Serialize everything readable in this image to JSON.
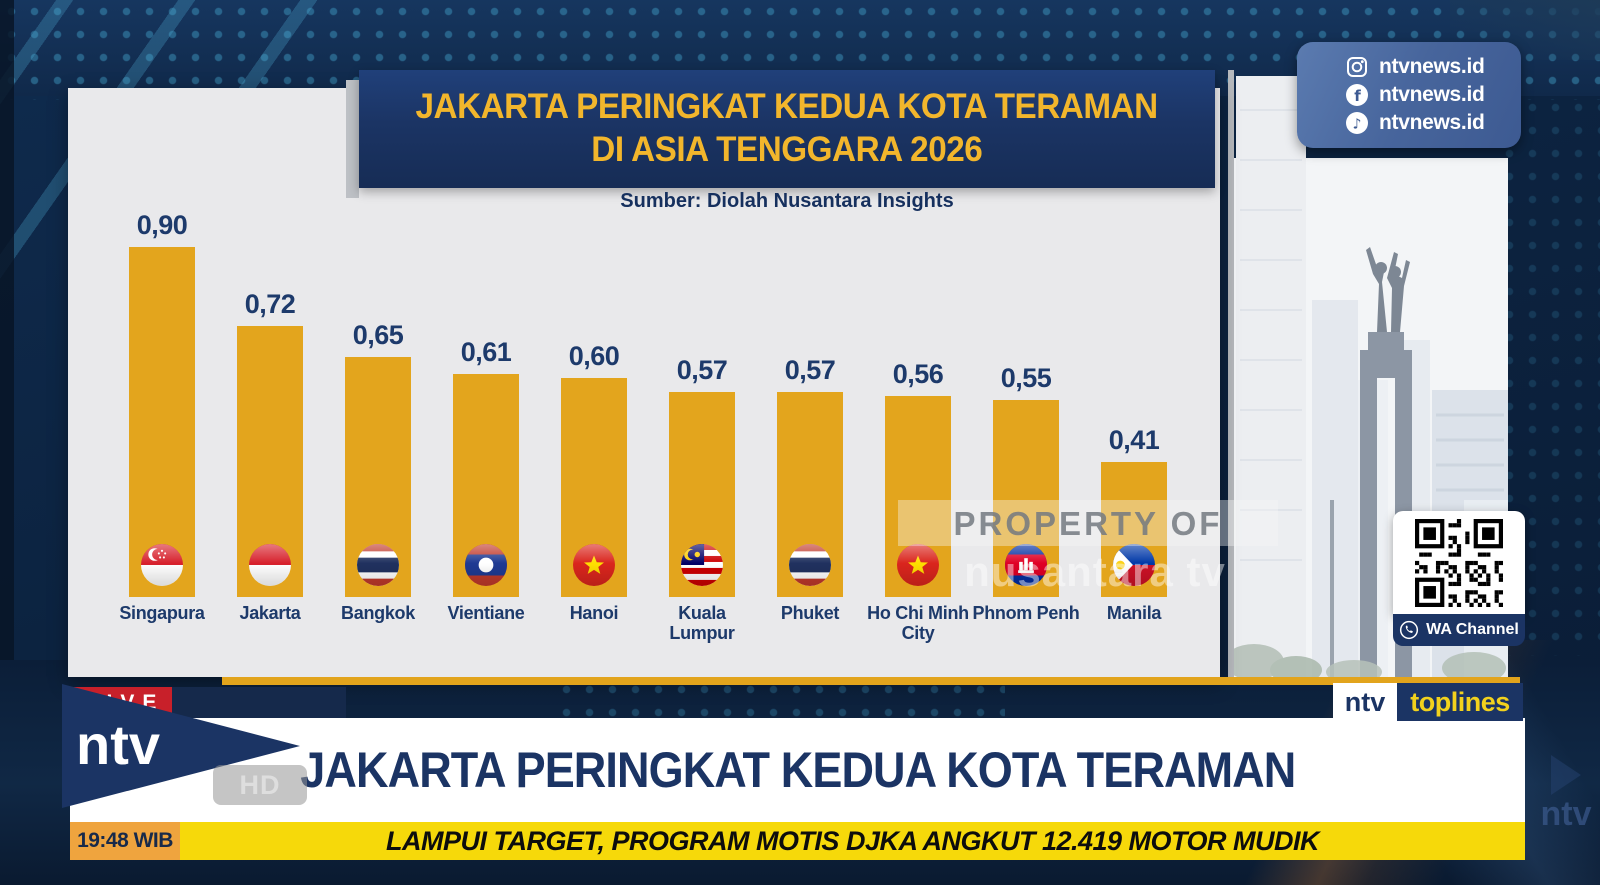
{
  "broadcast": {
    "live_label": "LIVE",
    "time": "19:48 WIB",
    "hd_label": "HD",
    "channel_logo_text": "ntv",
    "program_badge": {
      "prefix": "ntv",
      "name": "toplines"
    },
    "headline": "JAKARTA PERINGKAT KEDUA KOTA TERAMAN",
    "ticker": "LAMPUI TARGET, PROGRAM MOTIS DJKA ANGKUT 12.419 MOTOR MUDIK"
  },
  "social_panel": {
    "items": [
      {
        "platform": "instagram",
        "handle": "ntvnews.id"
      },
      {
        "platform": "facebook",
        "handle": "ntvnews.id"
      },
      {
        "platform": "tiktok",
        "handle": "ntvnews.id"
      }
    ]
  },
  "qr_panel": {
    "icon": "whatsapp",
    "label": "WA Channel"
  },
  "watermark": {
    "line1": "PROPERTY OF",
    "line2": "nusantara tv"
  },
  "background": {
    "ghost_logo": "ntv"
  },
  "chart_data": {
    "type": "bar",
    "title_lines": [
      "JAKARTA PERINGKAT KEDUA KOTA TERAMAN",
      "DI ASIA TENGGARA 2026"
    ],
    "source": "Sumber: Diolah Nusantara Insights",
    "categories": [
      "Singapura",
      "Jakarta",
      "Bangkok",
      "Vientiane",
      "Hanoi",
      "Kuala Lumpur",
      "Phuket",
      "Ho Chi Minh City",
      "Phnom Penh",
      "Manila"
    ],
    "values": [
      0.9,
      0.72,
      0.65,
      0.61,
      0.6,
      0.57,
      0.57,
      0.56,
      0.55,
      0.41
    ],
    "value_labels": [
      "0,90",
      "0,72",
      "0,65",
      "0,61",
      "0,60",
      "0,57",
      "0,57",
      "0,56",
      "0,55",
      "0,41"
    ],
    "flags": [
      "singapore",
      "indonesia",
      "thailand",
      "laos",
      "vietnam",
      "malaysia",
      "thailand",
      "vietnam",
      "cambodia",
      "philippines"
    ],
    "ylim": [
      0,
      1
    ],
    "grid": false,
    "legend": null,
    "bar_color": "#E3A51D",
    "label_color": "#1D3A6B"
  }
}
